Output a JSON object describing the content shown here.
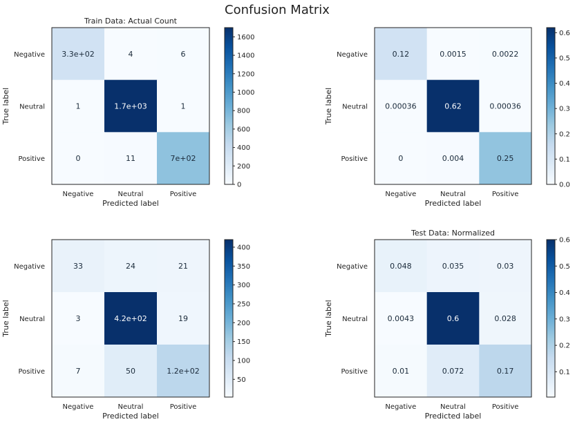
{
  "figure_title": "Confusion Matrix",
  "chart_data": [
    {
      "type": "heatmap",
      "title": "Train Data: Actual Count",
      "xlabel": "Predicted label",
      "ylabel": "True label",
      "x_categories": [
        "Negative",
        "Neutral",
        "Positive"
      ],
      "y_categories": [
        "Negative",
        "Neutral",
        "Positive"
      ],
      "values": [
        [
          330,
          4,
          6
        ],
        [
          1,
          1700,
          1
        ],
        [
          0,
          11,
          700
        ]
      ],
      "cell_labels": [
        [
          "3.3e+02",
          "4",
          "6"
        ],
        [
          "1",
          "1.7e+03",
          "1"
        ],
        [
          "0",
          "11",
          "7e+02"
        ]
      ],
      "vmin": 0,
      "vmax": 1700,
      "colorbar_ticks": [
        0,
        200,
        400,
        600,
        800,
        1000,
        1200,
        1400,
        1600
      ],
      "colorbar_tick_labels": [
        "0",
        "200",
        "400",
        "600",
        "800",
        "1000",
        "1200",
        "1400",
        "1600"
      ]
    },
    {
      "type": "heatmap",
      "title": "",
      "xlabel": "Predicted label",
      "ylabel": "True label",
      "x_categories": [
        "Negative",
        "Neutral",
        "Positive"
      ],
      "y_categories": [
        "Negative",
        "Neutral",
        "Positive"
      ],
      "values": [
        [
          0.12,
          0.0015,
          0.0022
        ],
        [
          0.00036,
          0.62,
          0.00036
        ],
        [
          0,
          0.004,
          0.25
        ]
      ],
      "cell_labels": [
        [
          "0.12",
          "0.0015",
          "0.0022"
        ],
        [
          "0.00036",
          "0.62",
          "0.00036"
        ],
        [
          "0",
          "0.004",
          "0.25"
        ]
      ],
      "vmin": 0,
      "vmax": 0.62,
      "colorbar_ticks": [
        0,
        0.1,
        0.2,
        0.3,
        0.4,
        0.5,
        0.6
      ],
      "colorbar_tick_labels": [
        "0.0",
        "0.1",
        "0.2",
        "0.3",
        "0.4",
        "0.5",
        "0.6"
      ]
    },
    {
      "type": "heatmap",
      "title": "",
      "xlabel": "Predicted label",
      "ylabel": "True label",
      "x_categories": [
        "Negative",
        "Neutral",
        "Positive"
      ],
      "y_categories": [
        "Negative",
        "Neutral",
        "Positive"
      ],
      "values": [
        [
          33,
          24,
          21
        ],
        [
          3,
          420,
          19
        ],
        [
          7,
          50,
          120
        ]
      ],
      "cell_labels": [
        [
          "33",
          "24",
          "21"
        ],
        [
          "3",
          "4.2e+02",
          "19"
        ],
        [
          "7",
          "50",
          "1.2e+02"
        ]
      ],
      "vmin": 3,
      "vmax": 420,
      "colorbar_ticks": [
        50,
        100,
        150,
        200,
        250,
        300,
        350,
        400
      ],
      "colorbar_tick_labels": [
        "50",
        "100",
        "150",
        "200",
        "250",
        "300",
        "350",
        "400"
      ]
    },
    {
      "type": "heatmap",
      "title": "Test Data: Normalized",
      "xlabel": "Predicted label",
      "ylabel": "True label",
      "x_categories": [
        "Negative",
        "Neutral",
        "Positive"
      ],
      "y_categories": [
        "Negative",
        "Neutral",
        "Positive"
      ],
      "values": [
        [
          0.048,
          0.035,
          0.03
        ],
        [
          0.0043,
          0.6,
          0.028
        ],
        [
          0.01,
          0.072,
          0.17
        ]
      ],
      "cell_labels": [
        [
          "0.048",
          "0.035",
          "0.03"
        ],
        [
          "0.0043",
          "0.6",
          "0.028"
        ],
        [
          "0.01",
          "0.072",
          "0.17"
        ]
      ],
      "vmin": 0.0043,
      "vmax": 0.6,
      "colorbar_ticks": [
        0.1,
        0.2,
        0.3,
        0.4,
        0.5,
        0.6
      ],
      "colorbar_tick_labels": [
        "0.1",
        "0.2",
        "0.3",
        "0.4",
        "0.5",
        "0.6"
      ]
    }
  ]
}
